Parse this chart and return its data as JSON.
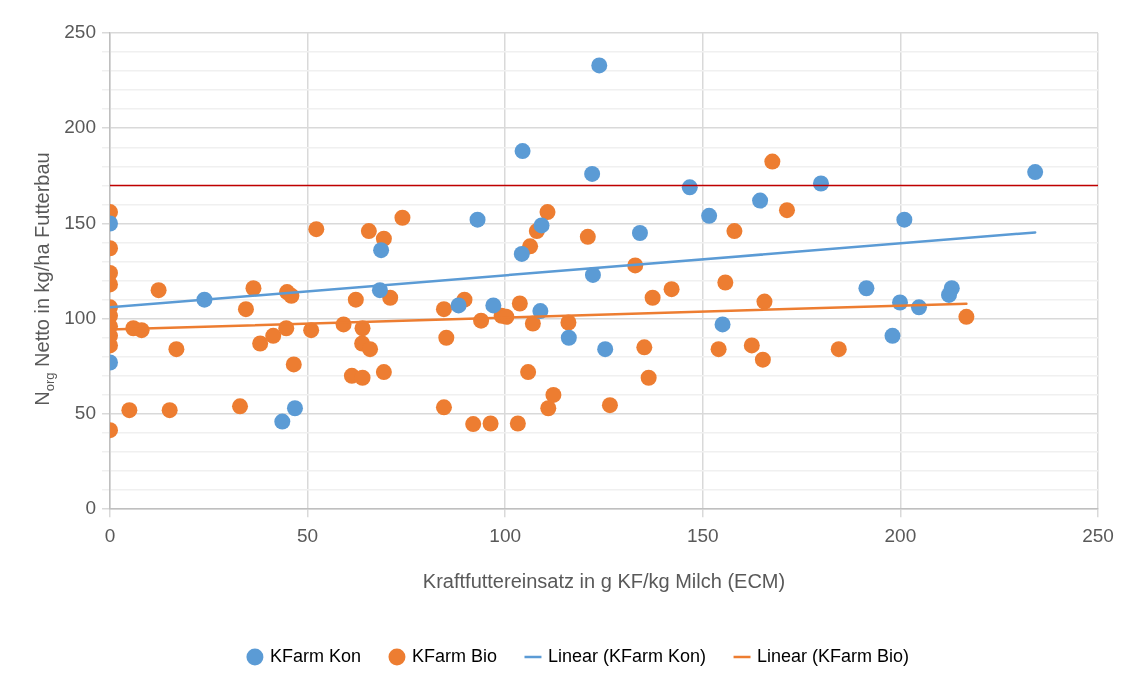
{
  "chart_data": {
    "type": "scatter",
    "xlabel": "Kraftfuttereinsatz in g KF/kg Milch (ECM)",
    "ylabel": "N$_{org}$ Netto in kg/ha Futterbau",
    "xlim": [
      0,
      250
    ],
    "xticks": [
      0,
      50,
      100,
      150,
      200,
      250
    ],
    "ylim": [
      0,
      250
    ],
    "yticks": [
      0,
      {
        "value": 10,
        "label": null
      },
      {
        "value": 20,
        "label": null
      },
      {
        "value": 30,
        "label": null
      },
      {
        "value": 40,
        "label": null
      },
      50,
      {
        "value": 60,
        "label": null
      },
      {
        "value": 70,
        "label": null
      },
      {
        "value": 80,
        "label": null
      },
      {
        "value": 90,
        "label": null
      },
      100,
      {
        "value": 110,
        "label": null
      },
      {
        "value": 120,
        "label": null
      },
      {
        "value": 130,
        "label": null
      },
      {
        "value": 140,
        "label": null
      },
      150,
      {
        "value": 160,
        "label": null
      },
      {
        "value": 170,
        "label": null
      },
      {
        "value": 180,
        "label": null
      },
      {
        "value": 190,
        "label": null
      },
      200,
      {
        "value": 210,
        "label": null
      },
      {
        "value": 220,
        "label": null
      },
      {
        "value": 230,
        "label": null
      },
      {
        "value": 240,
        "label": null
      },
      250
    ],
    "grid": true,
    "legend": "bottom",
    "marker": "circle",
    "ref_lines": [
      {
        "axis": "y",
        "value": 170,
        "color": "#c00000"
      }
    ],
    "series": [
      {
        "name": "KFarm Kon",
        "color": "#5b9bd5",
        "x": [
          0,
          0,
          23.9,
          68.6,
          68.3,
          46.8,
          43.6,
          123.8,
          104.4,
          122,
          93,
          109.2,
          104.2,
          122.2,
          146.7,
          151.6,
          134.1,
          164.5,
          88.2,
          97,
          108.9,
          116.1,
          125.3,
          155,
          179.9,
          234.1,
          201,
          191.4,
          199.9,
          204.7,
          198,
          213,
          212.3
        ],
        "values": [
          150,
          77,
          110,
          136,
          115,
          53,
          46,
          233,
          188,
          176,
          152,
          149,
          134,
          123,
          169,
          154,
          145,
          162,
          107,
          107,
          104,
          90,
          84,
          97,
          171,
          177,
          152,
          116,
          108.5,
          106,
          91,
          116,
          112.5
        ]
      },
      {
        "name": "KFarm Bio",
        "color": "#ed7d31",
        "x": [
          0,
          0,
          0,
          0,
          0,
          0,
          0,
          0,
          0,
          0,
          4.9,
          15.1,
          5.9,
          8,
          12.3,
          16.8,
          32.9,
          34.4,
          36.3,
          38,
          41.3,
          44.8,
          45.9,
          44.6,
          46.5,
          52.2,
          50.9,
          59.1,
          62.2,
          63.9,
          63.8,
          65.8,
          61.2,
          63.9,
          65.5,
          69.3,
          74,
          70.9,
          69.3,
          84.5,
          85.1,
          84.5,
          167.6,
          110.7,
          108,
          106.3,
          120.9,
          158,
          132.9,
          155.7,
          142.1,
          137.3,
          165.6,
          89.7,
          93.9,
          99.1,
          100.3,
          103.7,
          107,
          116,
          135.2,
          154,
          162.4,
          165.2,
          105.8,
          136.3,
          112.2,
          110.9,
          126.5,
          91.9,
          96.3,
          103.2,
          171.3,
          184.4,
          216.7
        ],
        "values": [
          156,
          137,
          124,
          118,
          106,
          101.5,
          96,
          91,
          86,
          41.5,
          52,
          52,
          95,
          94,
          115,
          84,
          54,
          105,
          116,
          87,
          91,
          114,
          112,
          95,
          76,
          147,
          94,
          97,
          110,
          95,
          87,
          84,
          70,
          69,
          146,
          142,
          153,
          111,
          72,
          105,
          90,
          53.5,
          182.5,
          156,
          146,
          138,
          143,
          146,
          128,
          119,
          115.5,
          111,
          109,
          110,
          99,
          101.5,
          101,
          108,
          97.5,
          98,
          85,
          84,
          86,
          78.5,
          72,
          69,
          60,
          53,
          54.6,
          44.7,
          45,
          45,
          157,
          84,
          101
        ]
      },
      {
        "name": "Linear (KFarm Kon)",
        "type": "line",
        "marker": "none",
        "color": "#5b9bd5",
        "x": [
          0,
          234.1
        ],
        "values": [
          106,
          145.3
        ]
      },
      {
        "name": "Linear (KFarm Bio)",
        "type": "line",
        "marker": "none",
        "color": "#ed7d31",
        "x": [
          0,
          216.7
        ],
        "values": [
          94.3,
          107.9
        ]
      }
    ]
  }
}
